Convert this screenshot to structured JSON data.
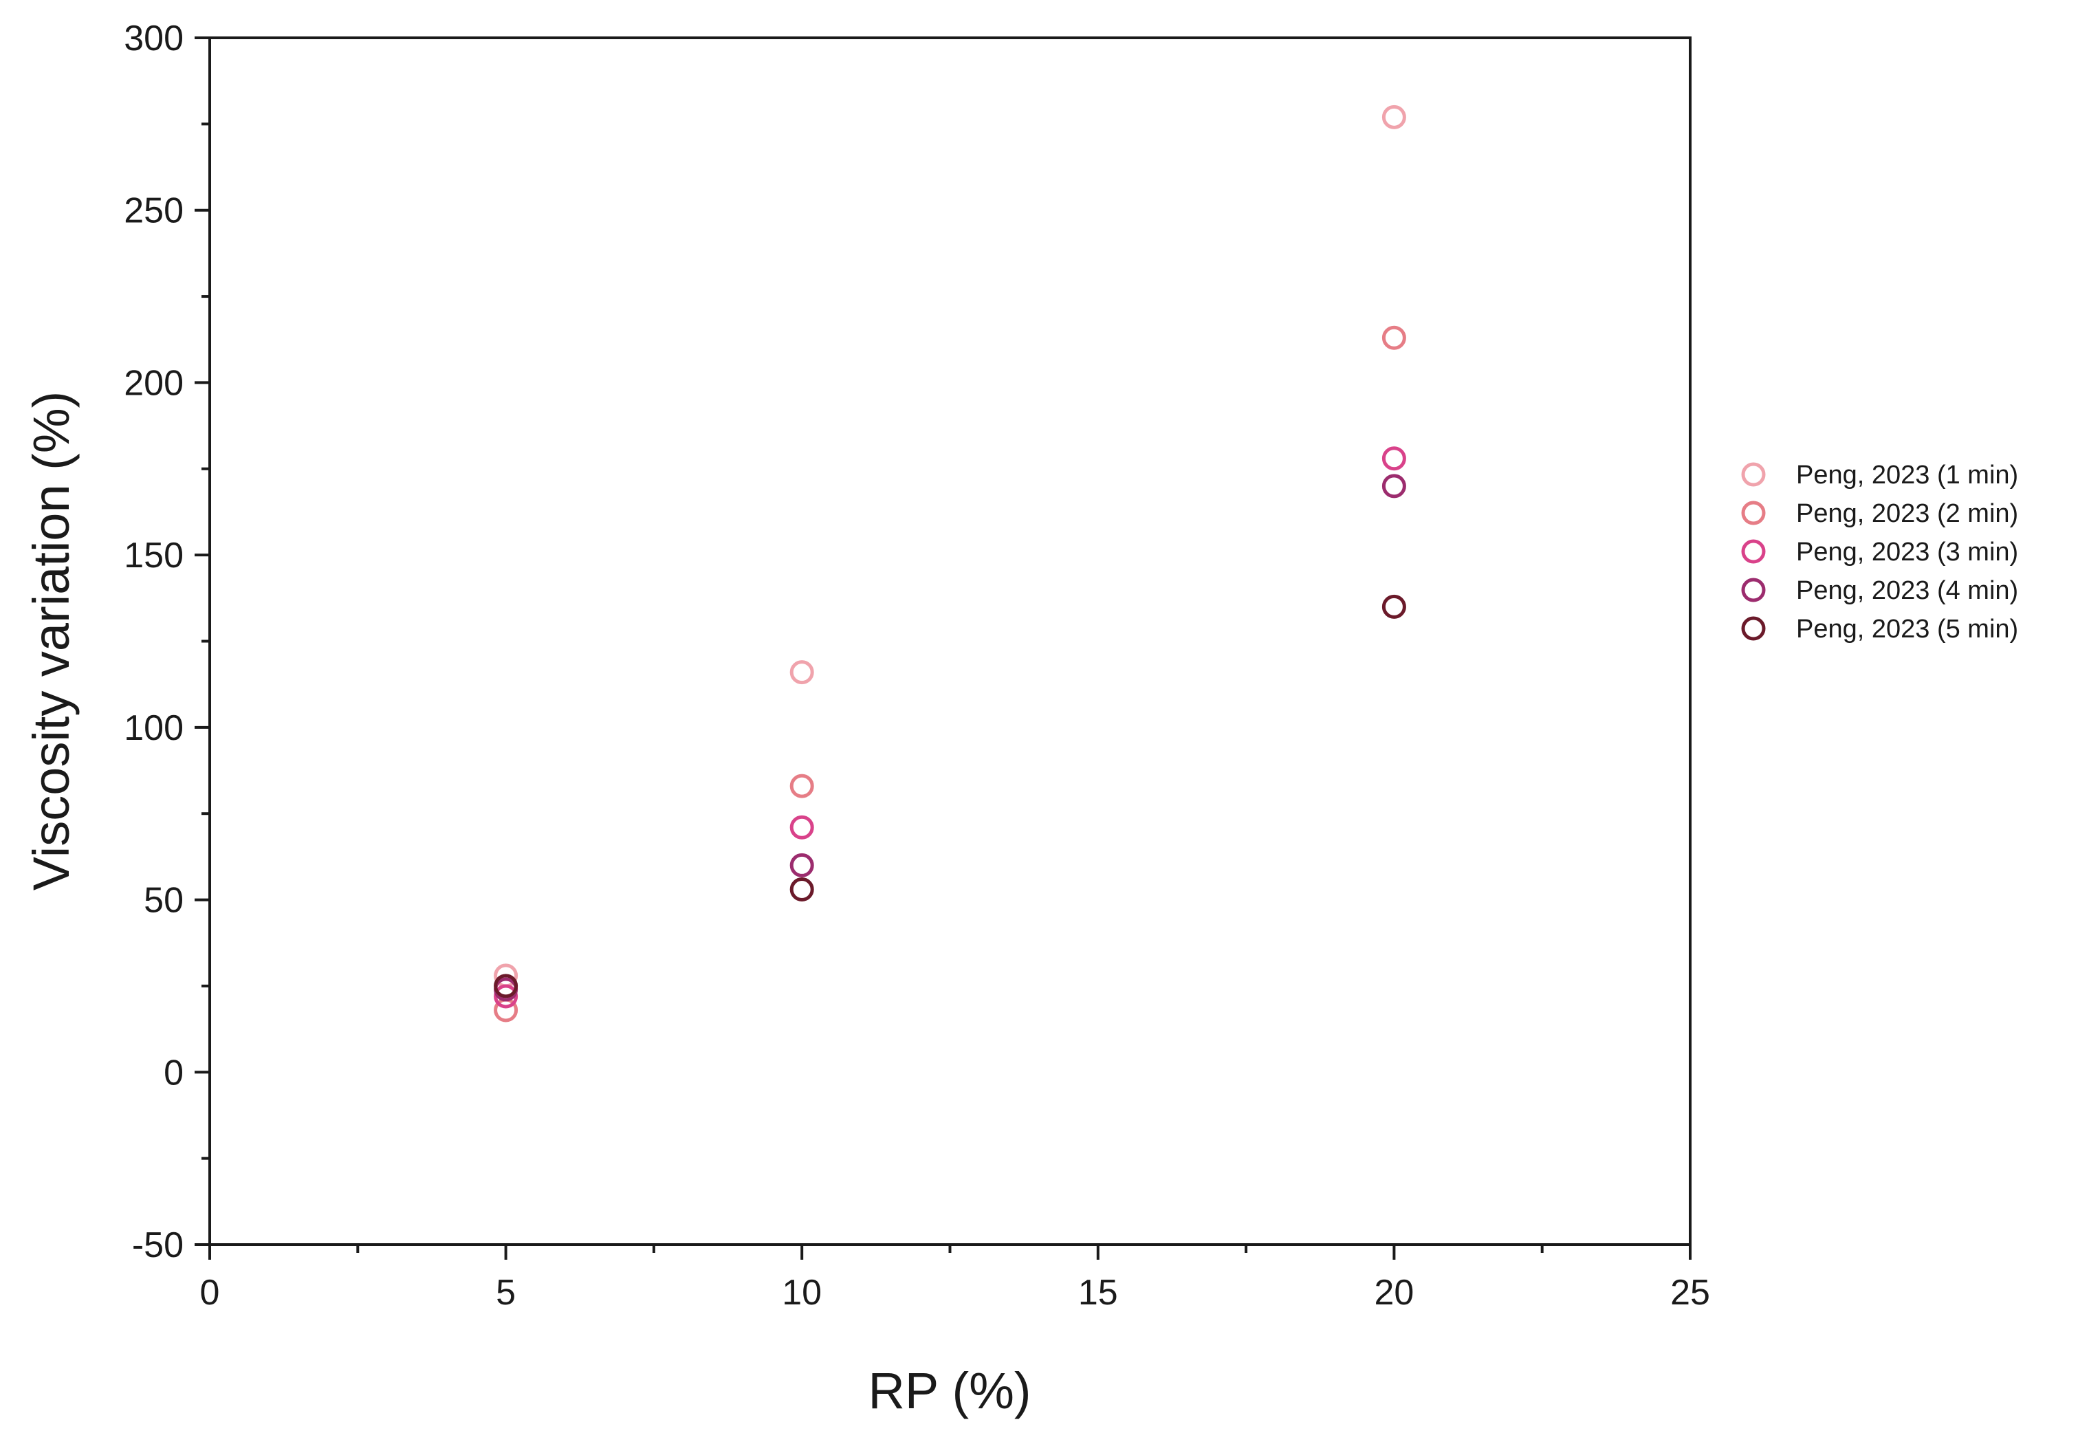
{
  "chart_data": {
    "type": "scatter",
    "xlabel": "RP (%)",
    "ylabel": "Viscosity variation (%)",
    "xlim": [
      0,
      25
    ],
    "ylim": [
      -50,
      300
    ],
    "x_ticks": [
      0,
      5,
      10,
      15,
      20,
      25
    ],
    "y_ticks": [
      -50,
      0,
      50,
      100,
      150,
      200,
      250,
      300
    ],
    "grid": false,
    "marker": "open-circle",
    "legend_position": "right",
    "series": [
      {
        "name": "Peng, 2023 (1 min)",
        "color": "#f0a3ac",
        "points": [
          {
            "x": 5,
            "y": 28
          },
          {
            "x": 10,
            "y": 116
          },
          {
            "x": 20,
            "y": 277
          }
        ]
      },
      {
        "name": "Peng, 2023 (2 min)",
        "color": "#e67d86",
        "points": [
          {
            "x": 5,
            "y": 18
          },
          {
            "x": 10,
            "y": 83
          },
          {
            "x": 20,
            "y": 213
          }
        ]
      },
      {
        "name": "Peng, 2023 (3 min)",
        "color": "#d9428a",
        "points": [
          {
            "x": 5,
            "y": 22
          },
          {
            "x": 10,
            "y": 71
          },
          {
            "x": 20,
            "y": 178
          }
        ]
      },
      {
        "name": "Peng, 2023 (4 min)",
        "color": "#9c2c6e",
        "points": [
          {
            "x": 5,
            "y": 24
          },
          {
            "x": 10,
            "y": 60
          },
          {
            "x": 20,
            "y": 170
          }
        ]
      },
      {
        "name": "Peng, 2023 (5 min)",
        "color": "#6b1a2a",
        "points": [
          {
            "x": 5,
            "y": 25
          },
          {
            "x": 10,
            "y": 53
          },
          {
            "x": 20,
            "y": 135
          }
        ]
      }
    ]
  }
}
